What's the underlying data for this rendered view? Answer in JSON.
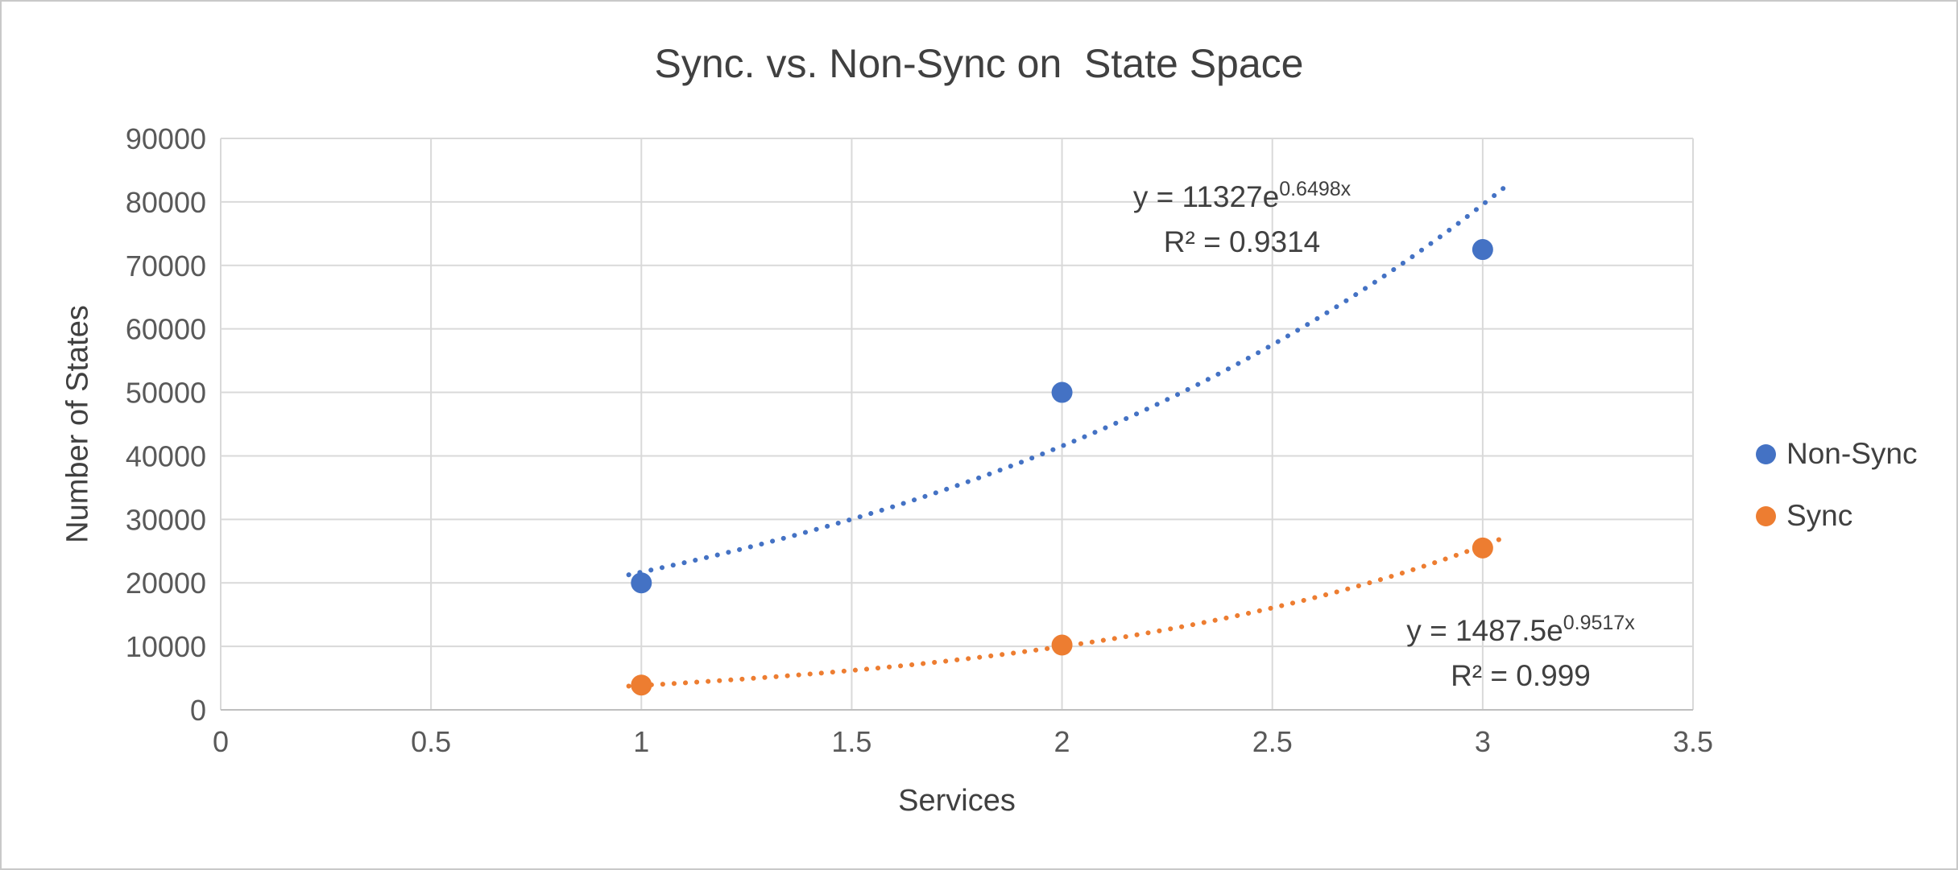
{
  "chart_data": {
    "type": "scatter",
    "title": "Sync. vs. Non-Sync on  State Space",
    "xlabel": "Services",
    "ylabel": "Number of States",
    "xlim": [
      0,
      3.5
    ],
    "ylim": [
      0,
      90000
    ],
    "xtick_step": 0.5,
    "ytick_step": 10000,
    "grid": true,
    "legend_position": "right",
    "colors": {
      "grid": "#D9D9D9",
      "axis": "#BFBFBF",
      "text": "#404040",
      "tick_text": "#595959"
    },
    "series": [
      {
        "name": "Non-Sync",
        "color": "#4472C4",
        "x": [
          1,
          2,
          3
        ],
        "y": [
          20000,
          50000,
          72500
        ],
        "trendline": {
          "type": "exponential",
          "a": 11327,
          "b": 0.6498,
          "equation_base": "y = 11327e",
          "equation_exponent": "0.6498x",
          "r_squared": "R² = 0.9314",
          "x_range": [
            0.97,
            3.05
          ]
        }
      },
      {
        "name": "Sync",
        "color": "#ED7D31",
        "x": [
          1,
          2,
          3
        ],
        "y": [
          3900,
          10200,
          25500
        ],
        "trendline": {
          "type": "exponential",
          "a": 1487.5,
          "b": 0.9517,
          "equation_base": "y = 1487.5e",
          "equation_exponent": "0.9517x",
          "r_squared": "R² = 0.999",
          "x_range": [
            0.97,
            3.05
          ]
        }
      }
    ]
  }
}
